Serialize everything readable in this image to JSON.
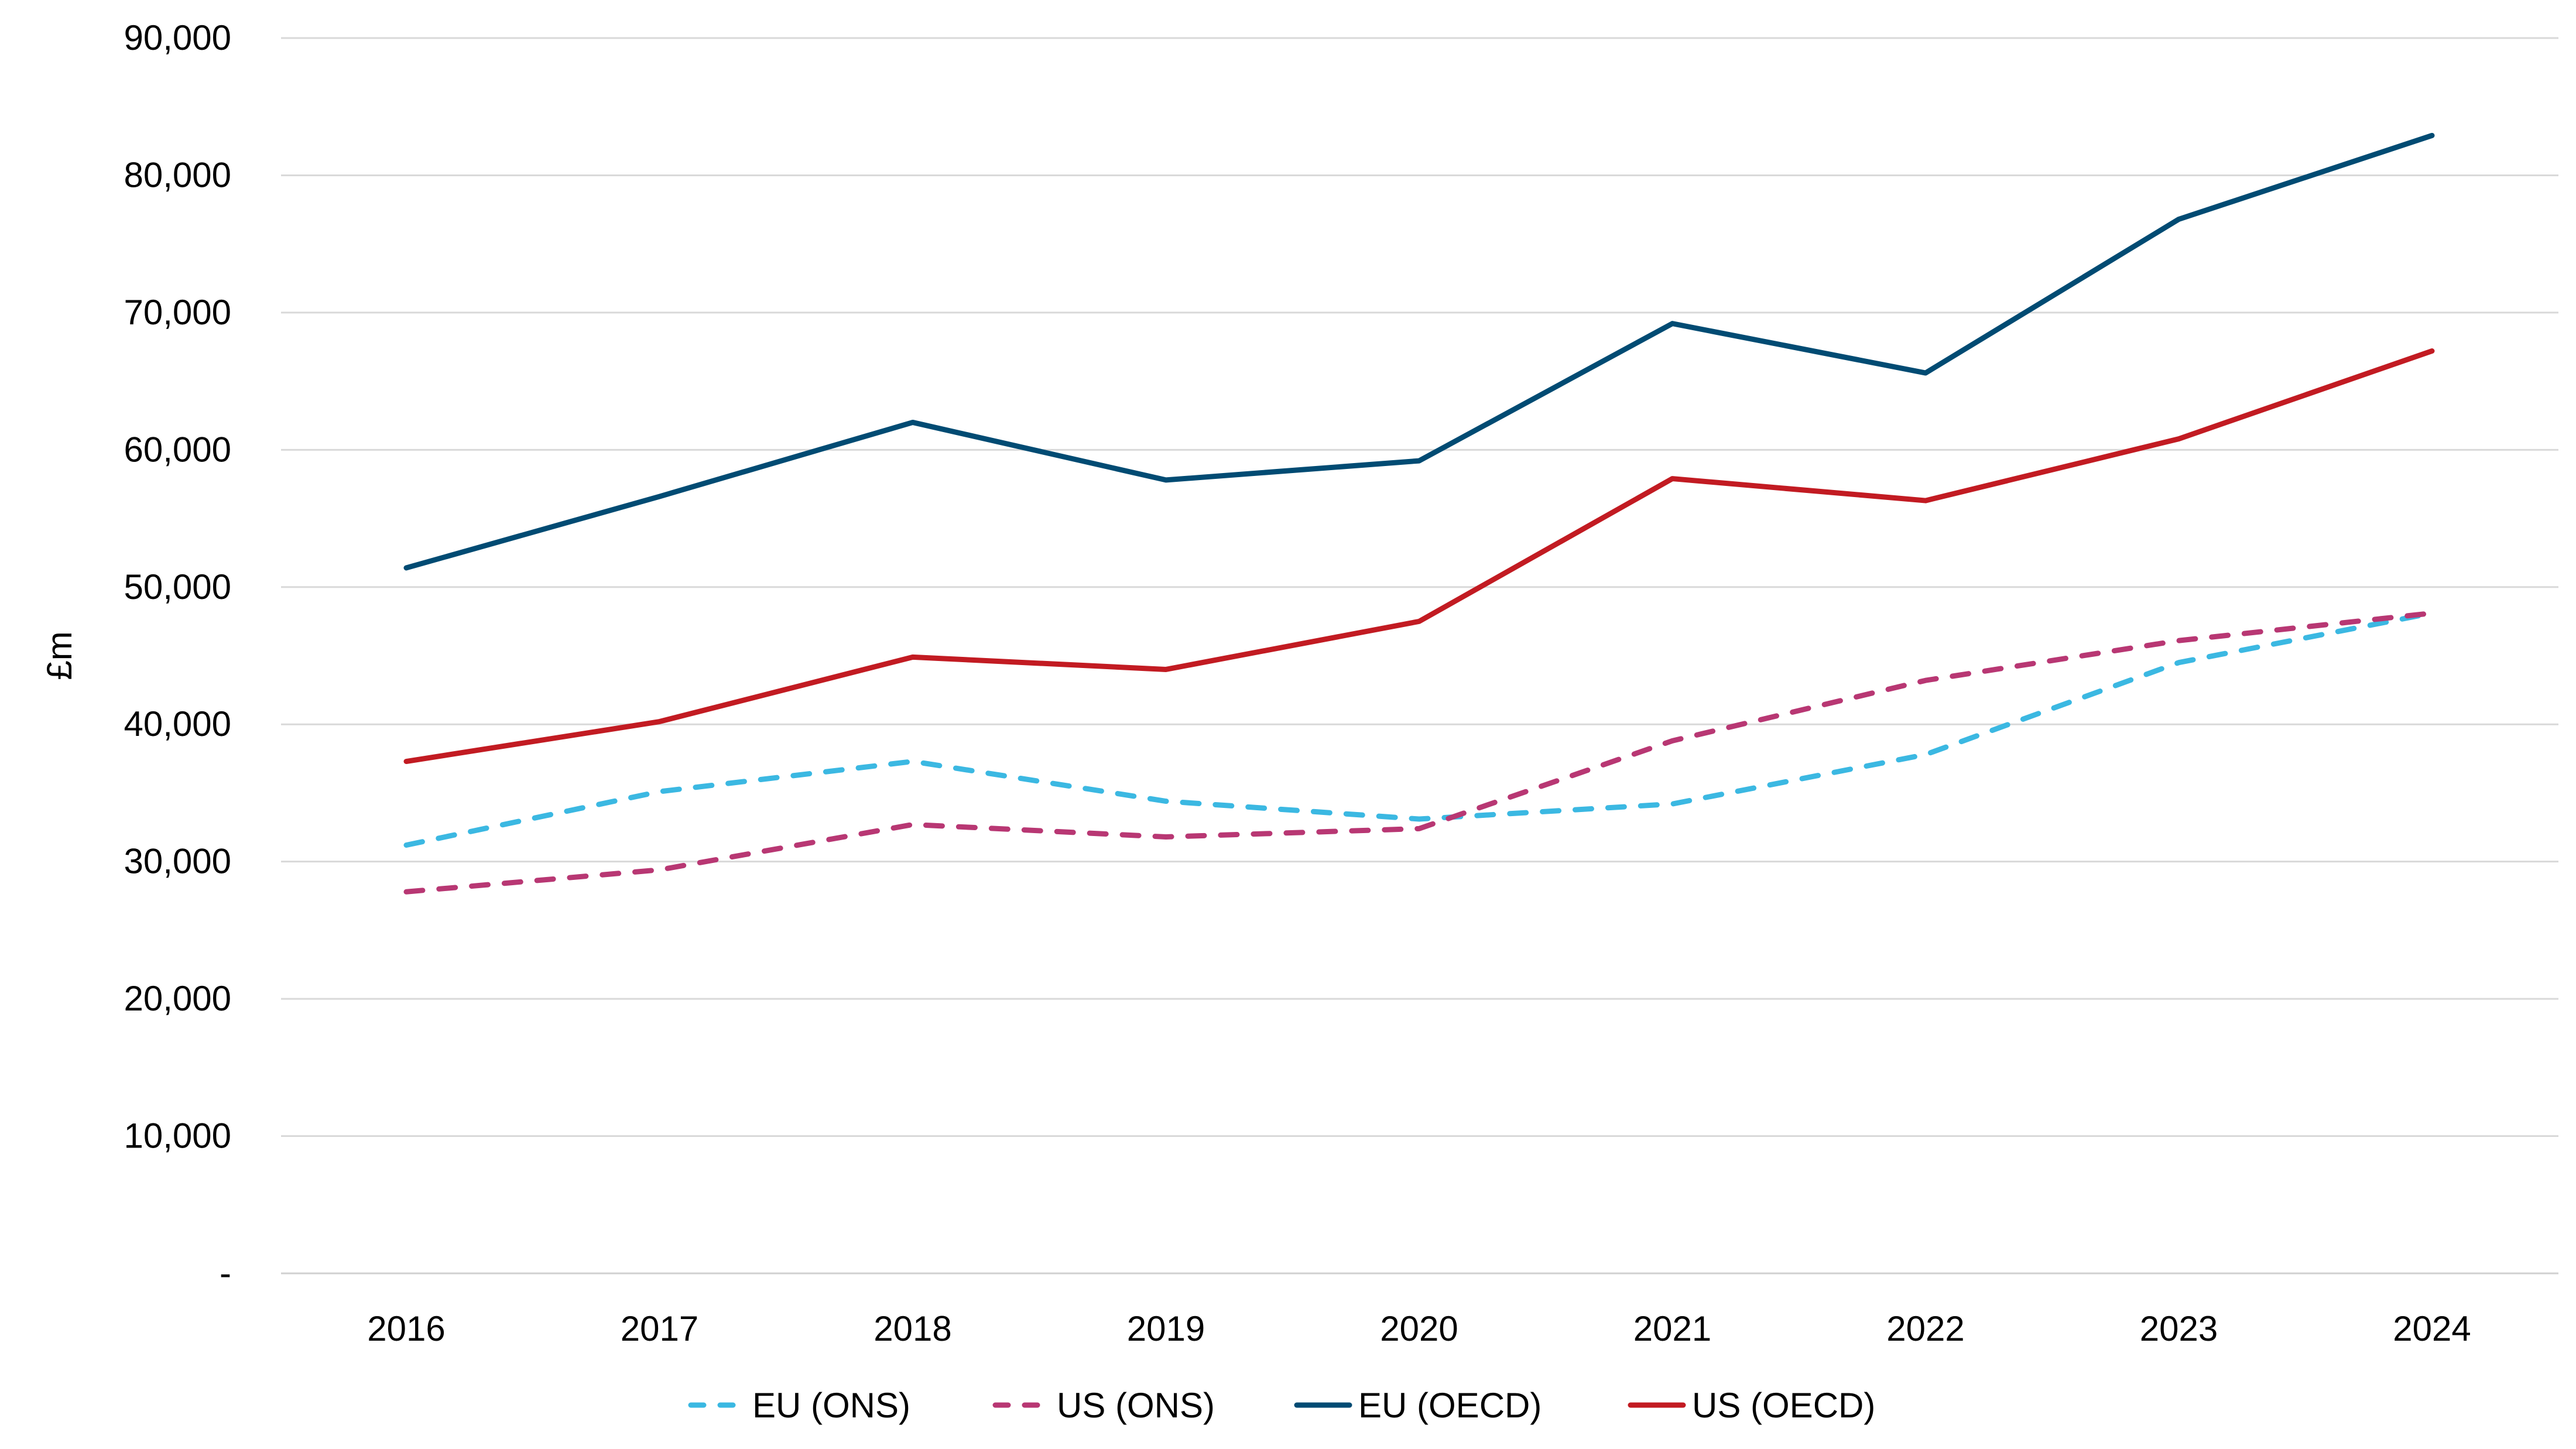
{
  "chart_data": {
    "type": "line",
    "title": "",
    "xlabel": "",
    "ylabel": "£m",
    "ylim": [
      0,
      90000
    ],
    "yticks": [
      0,
      10000,
      20000,
      30000,
      40000,
      50000,
      60000,
      70000,
      80000,
      90000
    ],
    "ytick_labels": [
      "-",
      "10,000",
      "20,000",
      "30,000",
      "40,000",
      "50,000",
      "60,000",
      "70,000",
      "80,000",
      "90,000"
    ],
    "grid": "horizontal",
    "legend_position": "bottom",
    "categories": [
      "2016",
      "2017",
      "2018",
      "2019",
      "2020",
      "2021",
      "2022",
      "2023",
      "2024"
    ],
    "series": [
      {
        "name": "EU (ONS)",
        "color": "#3bb8e2",
        "dashed": true,
        "values": [
          31200,
          35100,
          37300,
          34400,
          33100,
          34200,
          37800,
          44500,
          48100
        ]
      },
      {
        "name": "US (ONS)",
        "color": "#b83773",
        "dashed": true,
        "values": [
          27800,
          29400,
          32700,
          31800,
          32400,
          38800,
          43200,
          46100,
          48100
        ]
      },
      {
        "name": "EU (OECD)",
        "color": "#004b73",
        "dashed": false,
        "values": [
          51400,
          56600,
          62000,
          57800,
          59200,
          69200,
          65600,
          76800,
          82900
        ]
      },
      {
        "name": "US (OECD)",
        "color": "#c21b22",
        "dashed": false,
        "values": [
          37300,
          40200,
          44900,
          44000,
          47500,
          57900,
          56300,
          60800,
          67200
        ]
      }
    ]
  }
}
